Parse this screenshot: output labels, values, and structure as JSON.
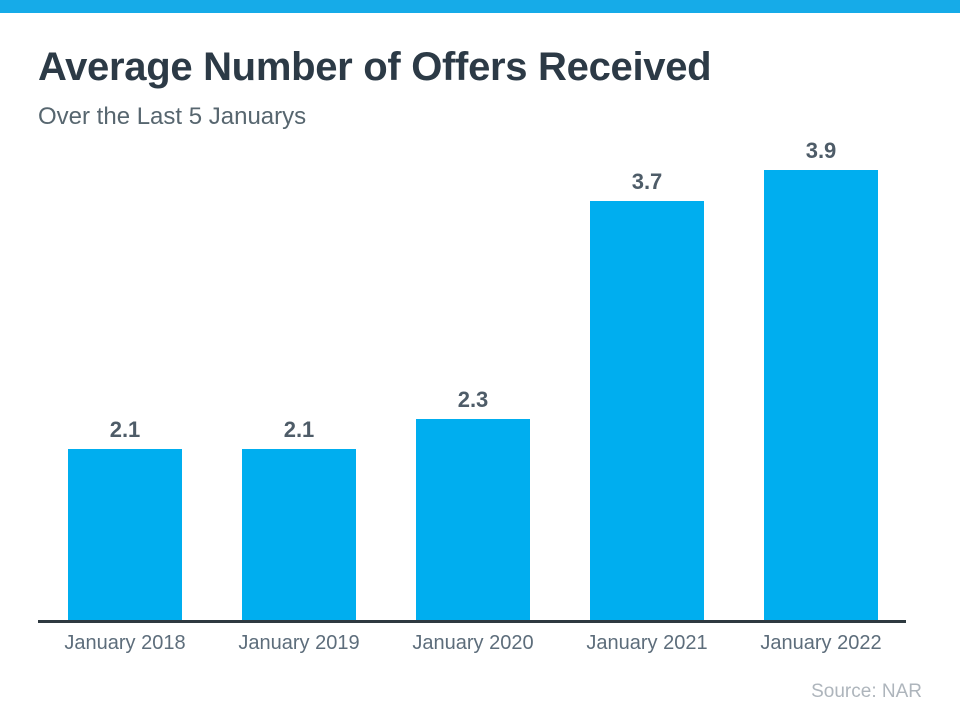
{
  "header": {
    "title": "Average Number of Offers Received",
    "subtitle": "Over the Last 5 Januarys"
  },
  "footer": {
    "source": "Source: NAR"
  },
  "colors": {
    "top_strip": "#16ABE8",
    "bar_fill": "#00AEEF",
    "title_text": "#2C3A46",
    "subtitle_text": "#57666F",
    "value_label_text": "#4E5C68",
    "axis_line": "#2E3940",
    "axis_label_text": "#5D6D7B",
    "source_text": "#AEB5BC"
  },
  "chart_data": {
    "type": "bar",
    "title": "Average Number of Offers Received",
    "subtitle": "Over the Last 5 Januarys",
    "categories": [
      "January 2018",
      "January 2019",
      "January 2020",
      "January 2021",
      "January 2022"
    ],
    "values": [
      2.1,
      2.1,
      2.3,
      3.7,
      3.9
    ],
    "value_labels": [
      "2.1",
      "2.1",
      "2.3",
      "3.7",
      "3.9"
    ],
    "xlabel": "",
    "ylabel": "",
    "ylim": [
      1.0,
      4.0
    ],
    "grid": false,
    "legend": false,
    "bar_color": "#00AEEF",
    "source": "Source: NAR"
  }
}
